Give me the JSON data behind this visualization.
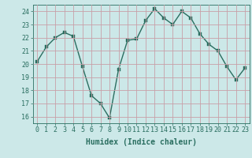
{
  "x": [
    0,
    1,
    2,
    3,
    4,
    5,
    6,
    7,
    8,
    9,
    10,
    11,
    12,
    13,
    14,
    15,
    16,
    17,
    18,
    19,
    20,
    21,
    22,
    23
  ],
  "y": [
    20.2,
    21.3,
    22.0,
    22.4,
    22.1,
    19.8,
    17.6,
    17.0,
    15.9,
    19.6,
    21.8,
    21.9,
    23.3,
    24.2,
    23.5,
    23.0,
    24.0,
    23.5,
    22.3,
    21.5,
    21.0,
    19.8,
    18.8,
    19.7
  ],
  "xlabel": "Humidex (Indice chaleur)",
  "xlim": [
    -0.5,
    23.5
  ],
  "ylim": [
    15.5,
    24.5
  ],
  "yticks": [
    16,
    17,
    18,
    19,
    20,
    21,
    22,
    23,
    24
  ],
  "xticks": [
    0,
    1,
    2,
    3,
    4,
    5,
    6,
    7,
    8,
    9,
    10,
    11,
    12,
    13,
    14,
    15,
    16,
    17,
    18,
    19,
    20,
    21,
    22,
    23
  ],
  "line_color": "#2a6e60",
  "marker_color": "#2a6e60",
  "bg_color": "#cce8e8",
  "grid_color": "#c8a0a8",
  "tick_label_color": "#2a6e60",
  "xlabel_color": "#2a6e60",
  "xlabel_fontsize": 7,
  "tick_fontsize": 6,
  "linewidth": 1.0,
  "markersize": 2.5
}
